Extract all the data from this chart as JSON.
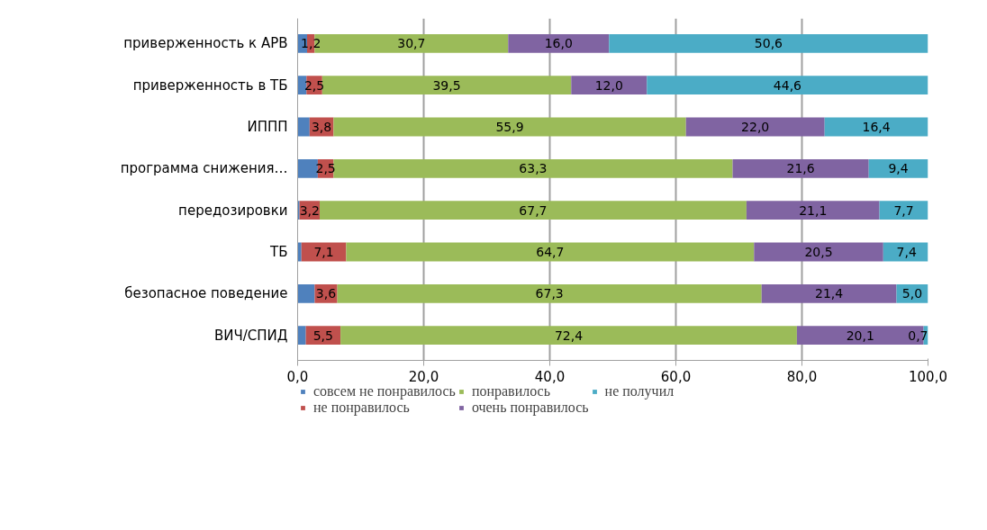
{
  "chart_data": {
    "type": "bar",
    "orientation": "horizontal",
    "stacked": true,
    "categories": [
      "приверженность к АРВ",
      "приверженность в ТБ",
      "ИППП",
      "программа снижения…",
      "передозировки",
      "ТБ",
      "безопасное поведение",
      "ВИЧ/СПИД"
    ],
    "series": [
      {
        "name": "совсем не понравилось",
        "color": "#4f81bd",
        "values": [
          1.5,
          1.4,
          1.9,
          3.2,
          0.3,
          0.6,
          2.7,
          1.3
        ]
      },
      {
        "name": "не понравилось",
        "color": "#c0504d",
        "values": [
          1.2,
          2.5,
          3.8,
          2.5,
          3.2,
          7.1,
          3.6,
          5.5
        ],
        "value_labels": [
          "1,2",
          "2,5",
          "3,8",
          "2,5",
          "3,2",
          "7,1",
          "3,6",
          "5,5"
        ]
      },
      {
        "name": "понравилось",
        "color": "#9bbb59",
        "values": [
          30.7,
          39.5,
          55.9,
          63.3,
          67.7,
          64.7,
          67.3,
          72.4
        ],
        "value_labels": [
          "30,7",
          "39,5",
          "55,9",
          "63,3",
          "67,7",
          "64,7",
          "67,3",
          "72,4"
        ]
      },
      {
        "name": "очень понравилось",
        "color": "#8064a2",
        "values": [
          16.0,
          12.0,
          22.0,
          21.6,
          21.1,
          20.5,
          21.4,
          20.1
        ],
        "value_labels": [
          "16,0",
          "12,0",
          "22,0",
          "21,6",
          "21,1",
          "20,5",
          "21,4",
          "20,1"
        ]
      },
      {
        "name": "не получил",
        "color": "#4bacc6",
        "values": [
          50.6,
          44.6,
          16.4,
          9.4,
          7.7,
          7.4,
          5.0,
          0.7
        ],
        "value_labels": [
          "50,6",
          "44,6",
          "16,4",
          "9,4",
          "7,7",
          "7,4",
          "5,0",
          "0,7"
        ]
      }
    ],
    "xlim": [
      0,
      100
    ],
    "xticks": [
      {
        "value": 0,
        "label": "0,0"
      },
      {
        "value": 20,
        "label": "20,0"
      },
      {
        "value": 40,
        "label": "40,0"
      },
      {
        "value": 60,
        "label": "60,0"
      },
      {
        "value": 80,
        "label": "80,0"
      },
      {
        "value": 100,
        "label": "100,0"
      }
    ],
    "grid": "x",
    "legend": "bottom"
  }
}
